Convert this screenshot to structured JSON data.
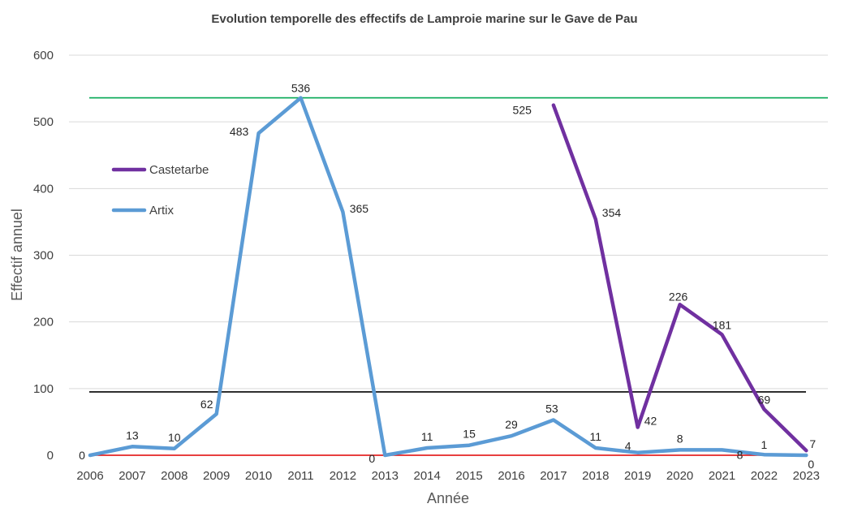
{
  "chart_data": {
    "type": "line",
    "title": "Evolution temporelle des effectifs de Lamproie marine sur le Gave de Pau",
    "xlabel": "Année",
    "ylabel": "Effectif annuel",
    "ylim": [
      0,
      600
    ],
    "yticks": [
      0,
      100,
      200,
      300,
      400,
      500,
      600
    ],
    "grid": true,
    "legend_position": "left",
    "categories": [
      "2006",
      "2007",
      "2008",
      "2009",
      "2010",
      "2011",
      "2012",
      "2013",
      "2014",
      "2015",
      "2016",
      "2017",
      "2018",
      "2019",
      "2020",
      "2021",
      "2022",
      "2023"
    ],
    "series": [
      {
        "name": "Castetarbe",
        "color": "#7030a0",
        "values": [
          null,
          null,
          null,
          null,
          null,
          null,
          null,
          null,
          null,
          null,
          null,
          525,
          354,
          42,
          226,
          181,
          69,
          7
        ],
        "labels": [
          null,
          null,
          null,
          null,
          null,
          null,
          null,
          null,
          null,
          null,
          null,
          "525",
          "354",
          "42",
          "226",
          "181",
          "69",
          "7"
        ]
      },
      {
        "name": "Artix",
        "color": "#5b9bd5",
        "values": [
          0,
          13,
          10,
          62,
          483,
          536,
          365,
          0,
          11,
          15,
          29,
          53,
          11,
          4,
          8,
          8,
          1,
          0
        ],
        "labels": [
          "0",
          "13",
          "10",
          "62",
          "483",
          "536",
          "365",
          "0",
          "11",
          "15",
          "29",
          "53",
          "11",
          "4",
          "8",
          "8",
          "1",
          "0"
        ]
      }
    ],
    "reference_lines": [
      {
        "value": 536,
        "color": "#00a651"
      },
      {
        "value": 95,
        "color": "#000000"
      },
      {
        "value": 0,
        "color": "#e00000"
      }
    ]
  }
}
